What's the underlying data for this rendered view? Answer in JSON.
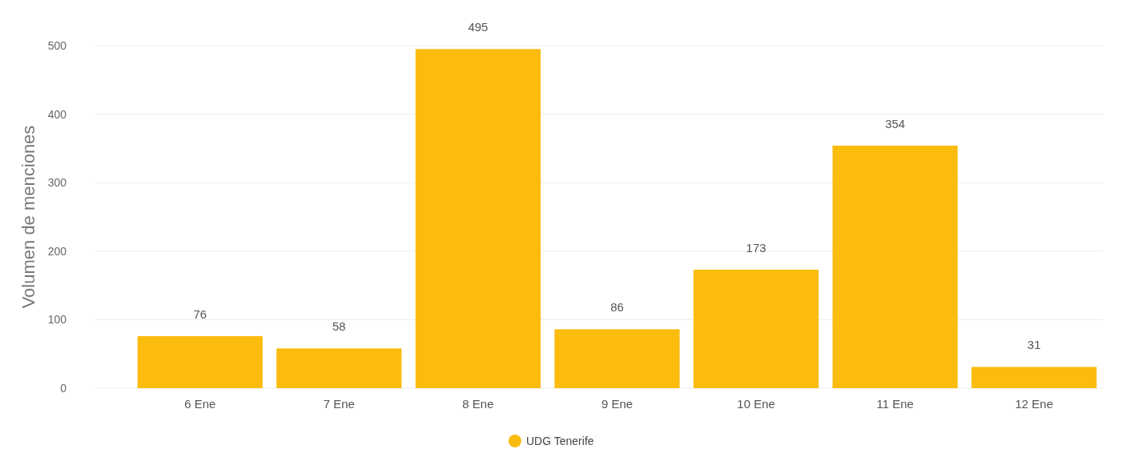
{
  "chart_data": {
    "type": "bar",
    "ylabel": "Volumen de menciones",
    "categories": [
      "6 Ene",
      "7 Ene",
      "8 Ene",
      "9 Ene",
      "10 Ene",
      "11 Ene",
      "12 Ene"
    ],
    "series": [
      {
        "name": "UDG Tenerife",
        "color": "#fbbc0e",
        "values": [
          76,
          58,
          495,
          86,
          173,
          354,
          31
        ]
      }
    ],
    "ylim": [
      0,
      500
    ],
    "yticks": [
      0,
      100,
      200,
      300,
      400,
      500
    ],
    "grid": "y",
    "data_labels": true,
    "legend": "bottom"
  }
}
